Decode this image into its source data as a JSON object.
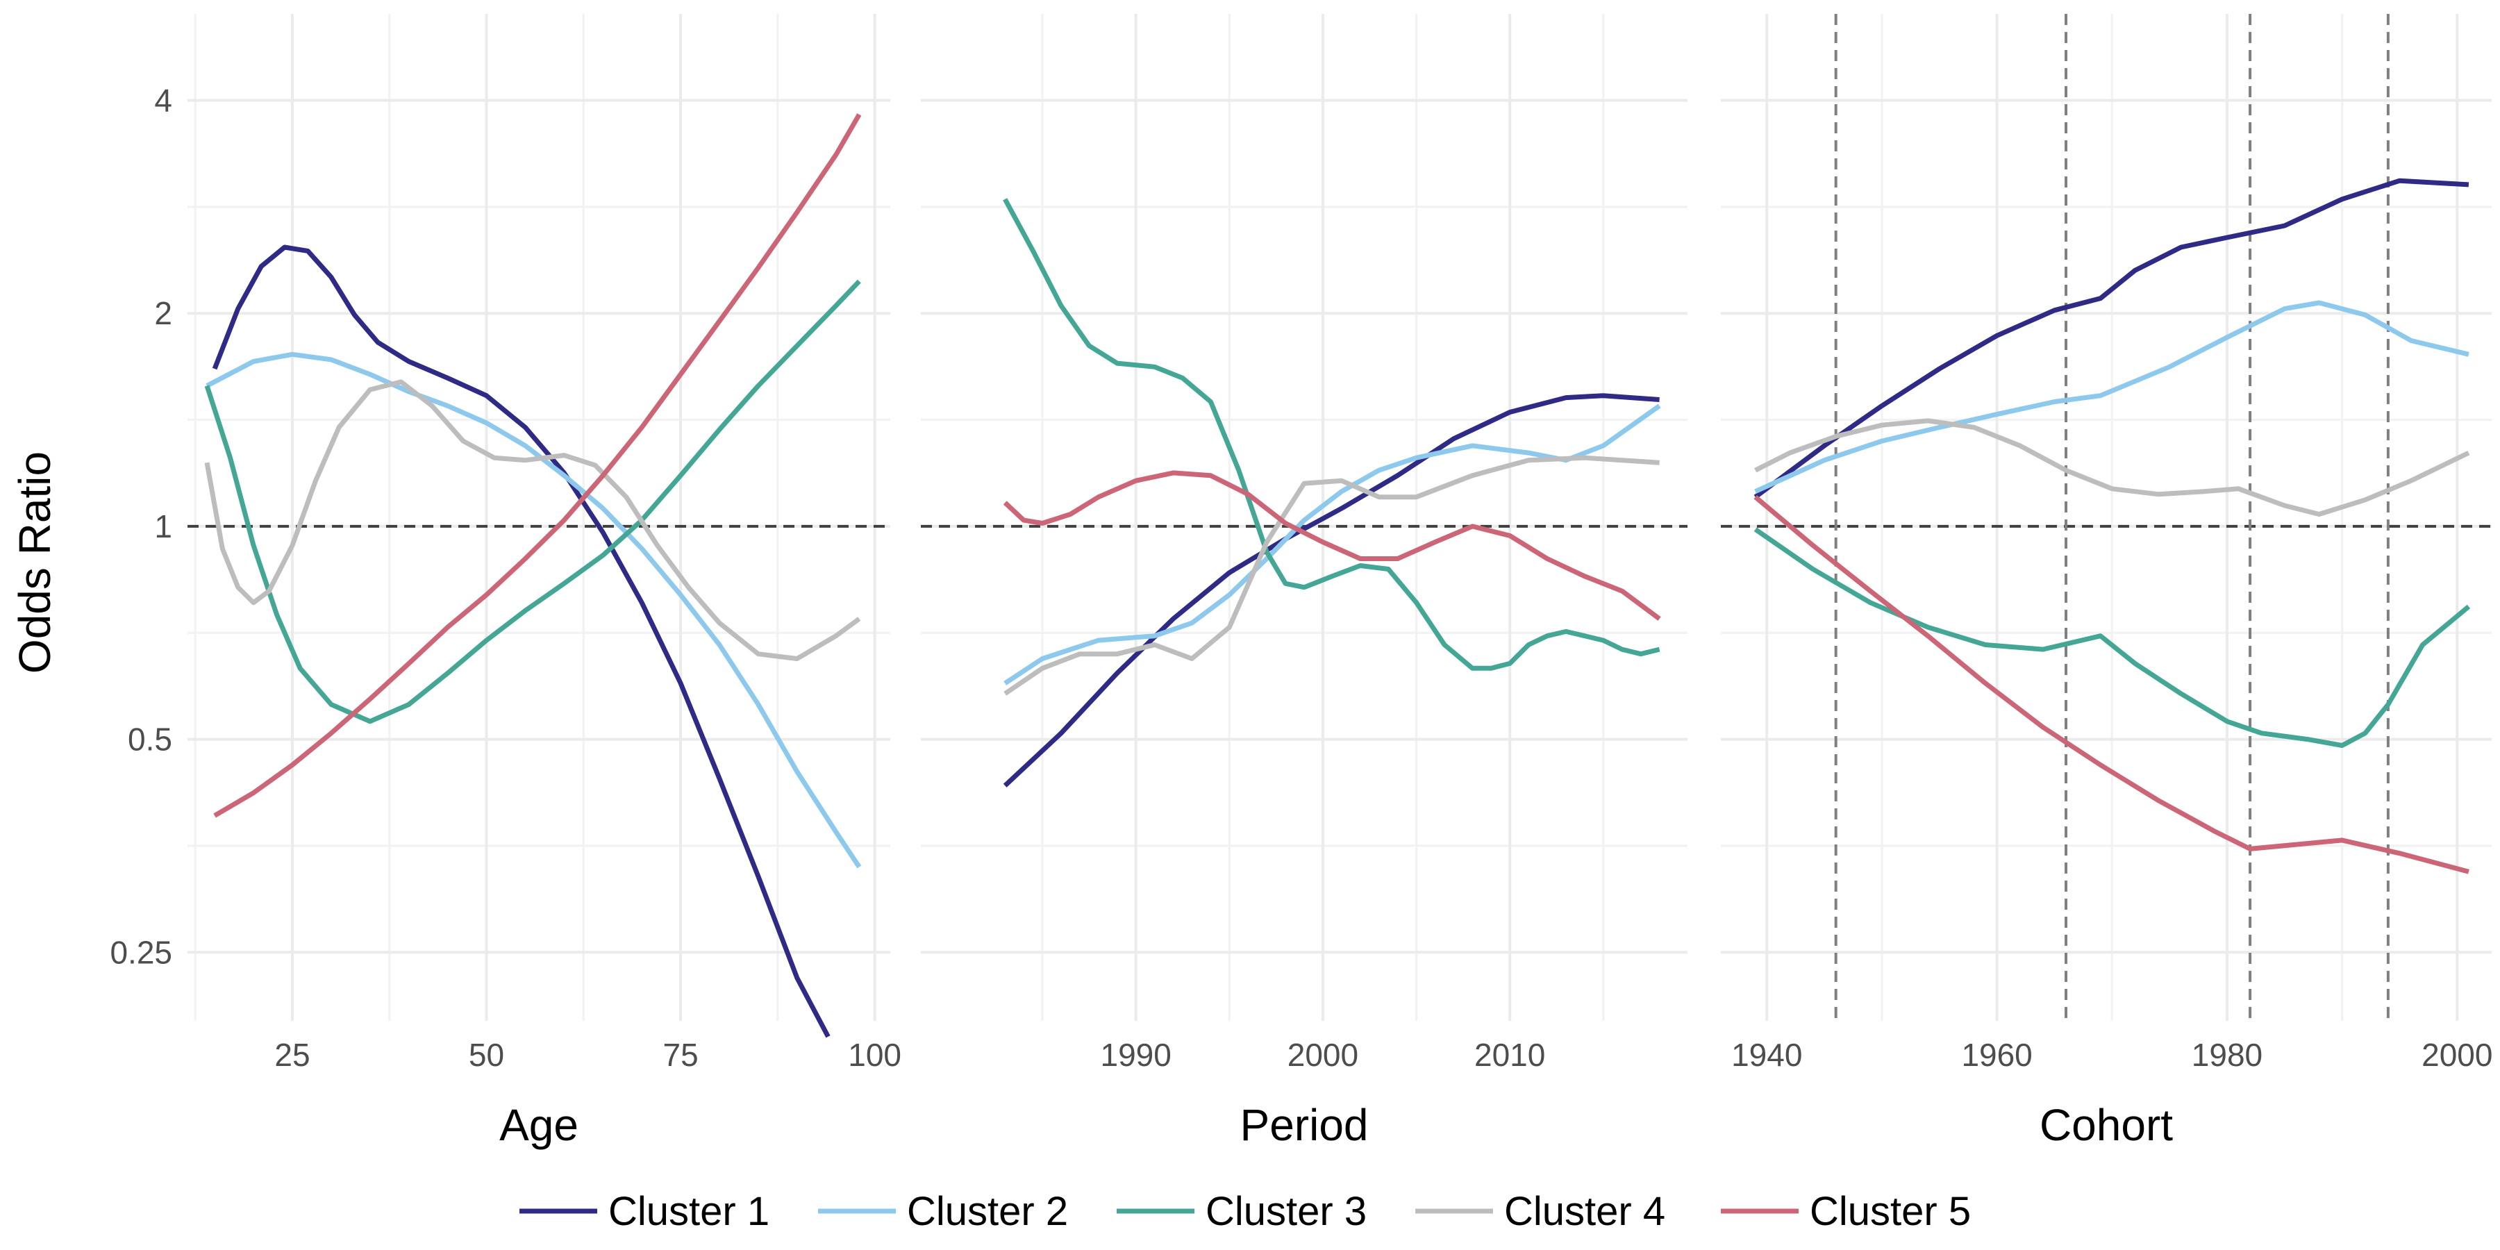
{
  "chart_data": {
    "type": "line",
    "y_axis": {
      "label": "Odds Ratio",
      "scale": "log2",
      "ticks": [
        0.25,
        0.5,
        1,
        2,
        4
      ],
      "tick_labels": [
        "0.25",
        "0.5",
        "1",
        "2",
        "4"
      ],
      "range": [
        0.2,
        5.3
      ]
    },
    "reference_line_y": 1,
    "grid": true,
    "legend_position": "bottom",
    "series_colors": {
      "Cluster 1": "#2f2a85",
      "Cluster 2": "#8cc9ec",
      "Cluster 3": "#44a796",
      "Cluster 4": "#bdbdbd",
      "Cluster 5": "#cc6677"
    },
    "legend": [
      "Cluster 1",
      "Cluster 2",
      "Cluster 3",
      "Cluster 4",
      "Cluster 5"
    ],
    "panels": [
      {
        "xlabel": "Age",
        "xlim": [
          11.5,
          102
        ],
        "x_ticks": [
          25,
          50,
          75,
          100
        ],
        "x_tick_labels": [
          "25",
          "50",
          "75",
          "100"
        ],
        "vlines": [],
        "series": [
          {
            "name": "Cluster 1",
            "x": [
              15,
              18,
              21,
              24,
              27,
              30,
              33,
              36,
              40,
              45,
              50,
              55,
              60,
              65,
              70,
              75,
              80,
              85,
              90,
              94
            ],
            "y": [
              1.67,
              2.03,
              2.33,
              2.48,
              2.45,
              2.25,
              1.99,
              1.82,
              1.71,
              1.62,
              1.53,
              1.38,
              1.19,
              0.98,
              0.78,
              0.6,
              0.44,
              0.32,
              0.23,
              0.19
            ]
          },
          {
            "name": "Cluster 2",
            "x": [
              14,
              20,
              25,
              30,
              35,
              40,
              45,
              50,
              55,
              60,
              65,
              70,
              75,
              80,
              85,
              90,
              95,
              98
            ],
            "y": [
              1.58,
              1.71,
              1.75,
              1.72,
              1.64,
              1.55,
              1.48,
              1.4,
              1.3,
              1.18,
              1.06,
              0.93,
              0.8,
              0.68,
              0.56,
              0.45,
              0.37,
              0.33
            ]
          },
          {
            "name": "Cluster 3",
            "x": [
              14,
              17,
              20,
              23,
              26,
              30,
              35,
              40,
              45,
              50,
              55,
              60,
              65,
              70,
              75,
              80,
              85,
              90,
              95,
              98
            ],
            "y": [
              1.58,
              1.25,
              0.94,
              0.75,
              0.63,
              0.56,
              0.53,
              0.56,
              0.62,
              0.69,
              0.76,
              0.83,
              0.91,
              1.02,
              1.18,
              1.37,
              1.58,
              1.8,
              2.05,
              2.22
            ]
          },
          {
            "name": "Cluster 4",
            "x": [
              14,
              16,
              18,
              20,
              22,
              25,
              28,
              31,
              35,
              39,
              43,
              47,
              51,
              55,
              60,
              64,
              68,
              72,
              76,
              80,
              85,
              90,
              95,
              98
            ],
            "y": [
              1.23,
              0.93,
              0.82,
              0.78,
              0.81,
              0.94,
              1.16,
              1.38,
              1.56,
              1.6,
              1.48,
              1.32,
              1.25,
              1.24,
              1.26,
              1.22,
              1.1,
              0.94,
              0.82,
              0.73,
              0.66,
              0.65,
              0.7,
              0.74
            ]
          },
          {
            "name": "Cluster 5",
            "x": [
              15,
              20,
              25,
              30,
              35,
              40,
              45,
              50,
              55,
              60,
              65,
              70,
              75,
              80,
              85,
              90,
              95,
              98
            ],
            "y": [
              0.39,
              0.42,
              0.46,
              0.51,
              0.57,
              0.64,
              0.72,
              0.8,
              0.9,
              1.02,
              1.18,
              1.38,
              1.64,
              1.95,
              2.32,
              2.78,
              3.35,
              3.82
            ]
          }
        ]
      },
      {
        "xlabel": "Period",
        "xlim": [
          1978.5,
          2019.5
        ],
        "x_ticks": [
          1990,
          2000,
          2010
        ],
        "x_tick_labels": [
          "1990",
          "2000",
          "2010"
        ],
        "vlines": [],
        "series": [
          {
            "name": "Cluster 1",
            "x": [
              1983,
              1986,
              1989,
              1992,
              1995,
              1998,
              2001,
              2004,
              2007,
              2010,
              2013,
              2015,
              2018
            ],
            "y": [
              0.43,
              0.51,
              0.62,
              0.74,
              0.86,
              0.96,
              1.06,
              1.18,
              1.33,
              1.45,
              1.52,
              1.53,
              1.51
            ]
          },
          {
            "name": "Cluster 2",
            "x": [
              1983,
              1985,
              1988,
              1991,
              1993,
              1995,
              1997,
              1999,
              2001,
              2003,
              2005,
              2008,
              2011,
              2013,
              2015,
              2018
            ],
            "y": [
              0.6,
              0.65,
              0.69,
              0.7,
              0.73,
              0.8,
              0.9,
              1.02,
              1.12,
              1.2,
              1.25,
              1.3,
              1.27,
              1.24,
              1.3,
              1.48
            ]
          },
          {
            "name": "Cluster 3",
            "x": [
              1983,
              1984.5,
              1986,
              1987.5,
              1989,
              1991,
              1992.5,
              1994,
              1995.5,
              1997,
              1998,
              1999,
              2000.5,
              2002,
              2003.5,
              2005,
              2006.5,
              2008,
              2009,
              2010,
              2011,
              2012,
              2013,
              2014,
              2015,
              2016,
              2017,
              2018
            ],
            "y": [
              2.9,
              2.45,
              2.05,
              1.8,
              1.7,
              1.68,
              1.62,
              1.5,
              1.2,
              0.92,
              0.83,
              0.82,
              0.85,
              0.88,
              0.87,
              0.78,
              0.68,
              0.63,
              0.63,
              0.64,
              0.68,
              0.7,
              0.71,
              0.7,
              0.69,
              0.67,
              0.66,
              0.67
            ]
          },
          {
            "name": "Cluster 4",
            "x": [
              1983,
              1985,
              1987,
              1989,
              1991,
              1993,
              1995,
              1997,
              1999,
              2001,
              2003,
              2005,
              2008,
              2011,
              2014,
              2018
            ],
            "y": [
              0.58,
              0.63,
              0.66,
              0.66,
              0.68,
              0.65,
              0.72,
              0.95,
              1.15,
              1.16,
              1.1,
              1.1,
              1.18,
              1.24,
              1.25,
              1.23
            ]
          },
          {
            "name": "Cluster 5",
            "x": [
              1983,
              1984,
              1985,
              1986.5,
              1988,
              1990,
              1992,
              1994,
              1996,
              1998,
              2000,
              2002,
              2004,
              2006,
              2008,
              2010,
              2012,
              2014,
              2016,
              2018
            ],
            "y": [
              1.08,
              1.02,
              1.01,
              1.04,
              1.1,
              1.16,
              1.19,
              1.18,
              1.11,
              1.01,
              0.95,
              0.9,
              0.9,
              0.95,
              1,
              0.97,
              0.9,
              0.85,
              0.81,
              0.74
            ]
          }
        ]
      },
      {
        "xlabel": "Cohort",
        "xlim": [
          1936,
          2003
        ],
        "x_ticks": [
          1940,
          1960,
          1980,
          2000
        ],
        "x_tick_labels": [
          "1940",
          "1960",
          "1980",
          "2000"
        ],
        "vlines": [
          1946,
          1966,
          1982,
          1994
        ],
        "series": [
          {
            "name": "Cluster 1",
            "x": [
              1939,
              1945,
              1950,
              1955,
              1960,
              1965,
              1969,
              1972,
              1976,
              1980,
              1985,
              1990,
              1995,
              2001
            ],
            "y": [
              1.1,
              1.3,
              1.48,
              1.67,
              1.86,
              2.02,
              2.1,
              2.3,
              2.48,
              2.56,
              2.66,
              2.9,
              3.08,
              3.04
            ]
          },
          {
            "name": "Cluster 2",
            "x": [
              1939,
              1945,
              1950,
              1955,
              1960,
              1965,
              1969,
              1975,
              1980,
              1985,
              1988,
              1992,
              1996,
              2001
            ],
            "y": [
              1.12,
              1.24,
              1.32,
              1.38,
              1.44,
              1.5,
              1.53,
              1.68,
              1.85,
              2.03,
              2.07,
              1.99,
              1.83,
              1.75
            ]
          },
          {
            "name": "Cluster 4",
            "x": [
              1939,
              1942,
              1946,
              1950,
              1954,
              1958,
              1962,
              1966,
              1970,
              1974,
              1978,
              1981,
              1985,
              1988,
              1992,
              1996,
              2001
            ],
            "y": [
              1.2,
              1.27,
              1.34,
              1.39,
              1.41,
              1.38,
              1.3,
              1.2,
              1.13,
              1.11,
              1.12,
              1.13,
              1.07,
              1.04,
              1.09,
              1.16,
              1.27
            ]
          },
          {
            "name": "Cluster 3",
            "x": [
              1939,
              1944,
              1949,
              1954,
              1959,
              1964,
              1969,
              1972,
              1976,
              1980,
              1983,
              1987,
              1990,
              1992,
              1994,
              1997,
              2001
            ],
            "y": [
              0.99,
              0.87,
              0.78,
              0.72,
              0.68,
              0.67,
              0.7,
              0.64,
              0.58,
              0.53,
              0.51,
              0.5,
              0.49,
              0.51,
              0.56,
              0.68,
              0.77
            ]
          },
          {
            "name": "Cluster 5",
            "x": [
              1939,
              1944,
              1949,
              1954,
              1959,
              1964,
              1969,
              1974,
              1979,
              1982,
              1986,
              1990,
              1995,
              2001
            ],
            "y": [
              1.1,
              0.94,
              0.81,
              0.7,
              0.6,
              0.52,
              0.46,
              0.41,
              0.37,
              0.35,
              0.355,
              0.36,
              0.345,
              0.325
            ]
          }
        ]
      }
    ]
  }
}
